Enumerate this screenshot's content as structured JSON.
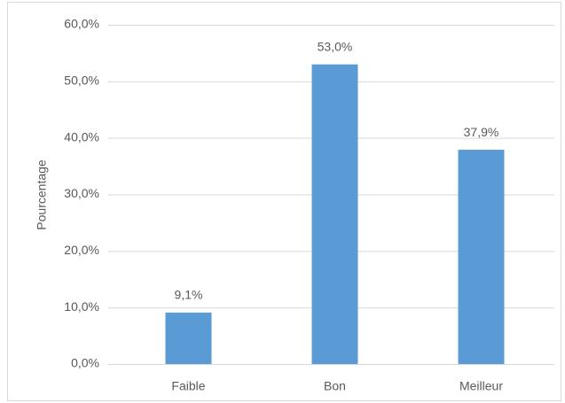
{
  "chart_data": {
    "type": "bar",
    "y_label": "Pourcentage",
    "categories": [
      "Faible",
      "Bon",
      "Meilleur"
    ],
    "values": [
      9.1,
      53.0,
      37.9
    ],
    "value_labels": [
      "9,1%",
      "53,0%",
      "37,9%"
    ],
    "color": "#5b9bd5",
    "ylim": [
      0,
      60
    ],
    "yticks": [
      {
        "value": 0,
        "label": "0,0%"
      },
      {
        "value": 10,
        "label": "10,0%"
      },
      {
        "value": 20,
        "label": "20,0%"
      },
      {
        "value": 30,
        "label": "30,0%"
      },
      {
        "value": 40,
        "label": "40,0%"
      },
      {
        "value": 50,
        "label": "50,0%"
      },
      {
        "value": 60,
        "label": "60,0%"
      }
    ],
    "grid": true
  }
}
